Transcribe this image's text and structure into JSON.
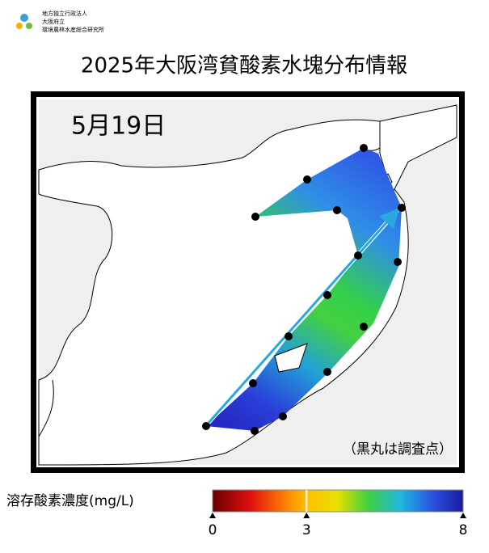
{
  "header": {
    "org_lines": [
      "地方独立行政法人",
      "大阪府立",
      "環境農林水産総合研究所"
    ],
    "title": "2025年大阪湾貧酸素水塊分布情報"
  },
  "map": {
    "date": "5月19日",
    "note": "（黒丸は調査点）"
  },
  "colorbar": {
    "label": "溶存酸素濃度(mg/L)",
    "lim": [
      0,
      8
    ],
    "ticks": [
      0,
      3,
      8
    ]
  }
}
